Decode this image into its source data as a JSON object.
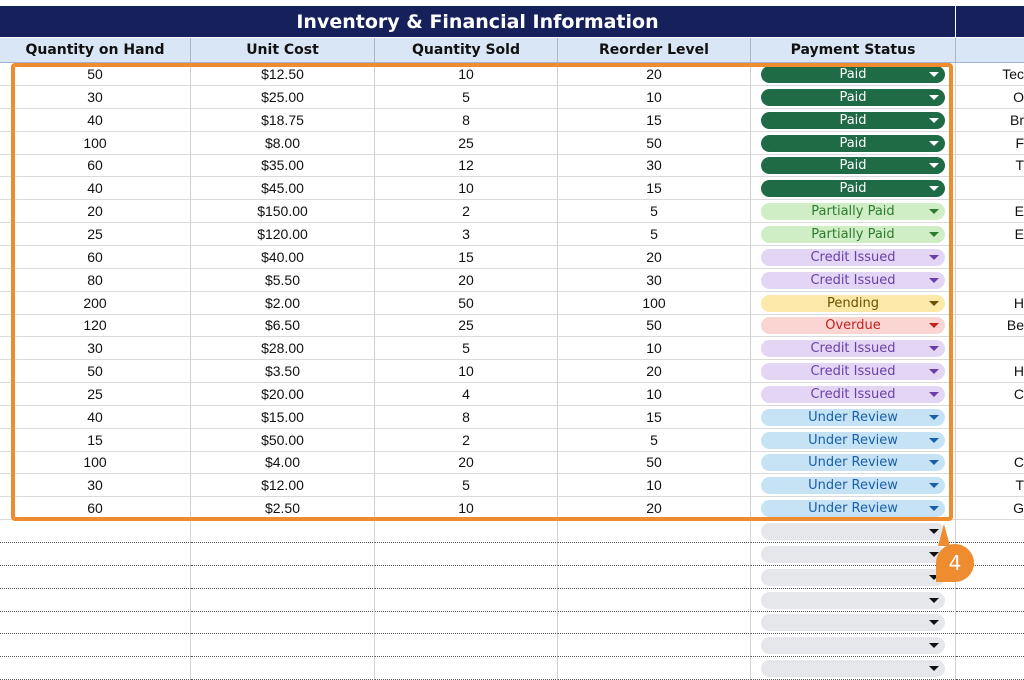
{
  "title": "Inventory & Financial Information",
  "columns": [
    "Quantity on Hand",
    "Unit Cost",
    "Quantity Sold",
    "Reorder Level",
    "Payment Status"
  ],
  "callout_number": "4",
  "colors": {
    "title_bg": "#16215c",
    "header_bg": "#d8e6f6",
    "highlight": "#f08c30",
    "paid": "#1e6b45",
    "partially_paid": "#cfeec5",
    "credit_issued": "#e3d6f4",
    "pending": "#fce8a8",
    "overdue": "#fbd5d2",
    "under_review": "#c6e3f6"
  },
  "rows": [
    {
      "qty": "50",
      "cost": "$12.50",
      "sold": "10",
      "reorder": "20",
      "status": "Paid",
      "extra": "Tec"
    },
    {
      "qty": "30",
      "cost": "$25.00",
      "sold": "5",
      "reorder": "10",
      "status": "Paid",
      "extra": "O"
    },
    {
      "qty": "40",
      "cost": "$18.75",
      "sold": "8",
      "reorder": "15",
      "status": "Paid",
      "extra": "Br"
    },
    {
      "qty": "100",
      "cost": "$8.00",
      "sold": "25",
      "reorder": "50",
      "status": "Paid",
      "extra": "F"
    },
    {
      "qty": "60",
      "cost": "$35.00",
      "sold": "12",
      "reorder": "30",
      "status": "Paid",
      "extra": "T"
    },
    {
      "qty": "40",
      "cost": "$45.00",
      "sold": "10",
      "reorder": "15",
      "status": "Paid",
      "extra": ""
    },
    {
      "qty": "20",
      "cost": "$150.00",
      "sold": "2",
      "reorder": "5",
      "status": "Partially Paid",
      "extra": "E"
    },
    {
      "qty": "25",
      "cost": "$120.00",
      "sold": "3",
      "reorder": "5",
      "status": "Partially Paid",
      "extra": "E"
    },
    {
      "qty": "60",
      "cost": "$40.00",
      "sold": "15",
      "reorder": "20",
      "status": "Credit Issued",
      "extra": ""
    },
    {
      "qty": "80",
      "cost": "$5.50",
      "sold": "20",
      "reorder": "30",
      "status": "Credit Issued",
      "extra": ""
    },
    {
      "qty": "200",
      "cost": "$2.00",
      "sold": "50",
      "reorder": "100",
      "status": "Pending",
      "extra": "H"
    },
    {
      "qty": "120",
      "cost": "$6.50",
      "sold": "25",
      "reorder": "50",
      "status": "Overdue",
      "extra": "Be"
    },
    {
      "qty": "30",
      "cost": "$28.00",
      "sold": "5",
      "reorder": "10",
      "status": "Credit Issued",
      "extra": ""
    },
    {
      "qty": "50",
      "cost": "$3.50",
      "sold": "10",
      "reorder": "20",
      "status": "Credit Issued",
      "extra": "H"
    },
    {
      "qty": "25",
      "cost": "$20.00",
      "sold": "4",
      "reorder": "10",
      "status": "Credit Issued",
      "extra": "C"
    },
    {
      "qty": "40",
      "cost": "$15.00",
      "sold": "8",
      "reorder": "15",
      "status": "Under Review",
      "extra": ""
    },
    {
      "qty": "15",
      "cost": "$50.00",
      "sold": "2",
      "reorder": "5",
      "status": "Under Review",
      "extra": ""
    },
    {
      "qty": "100",
      "cost": "$4.00",
      "sold": "20",
      "reorder": "50",
      "status": "Under Review",
      "extra": "C"
    },
    {
      "qty": "30",
      "cost": "$12.00",
      "sold": "5",
      "reorder": "10",
      "status": "Under Review",
      "extra": "T"
    },
    {
      "qty": "60",
      "cost": "$2.50",
      "sold": "10",
      "reorder": "20",
      "status": "Under Review",
      "extra": "G"
    }
  ],
  "empty_rows": [
    "",
    "",
    "",
    "",
    "",
    "",
    ""
  ]
}
